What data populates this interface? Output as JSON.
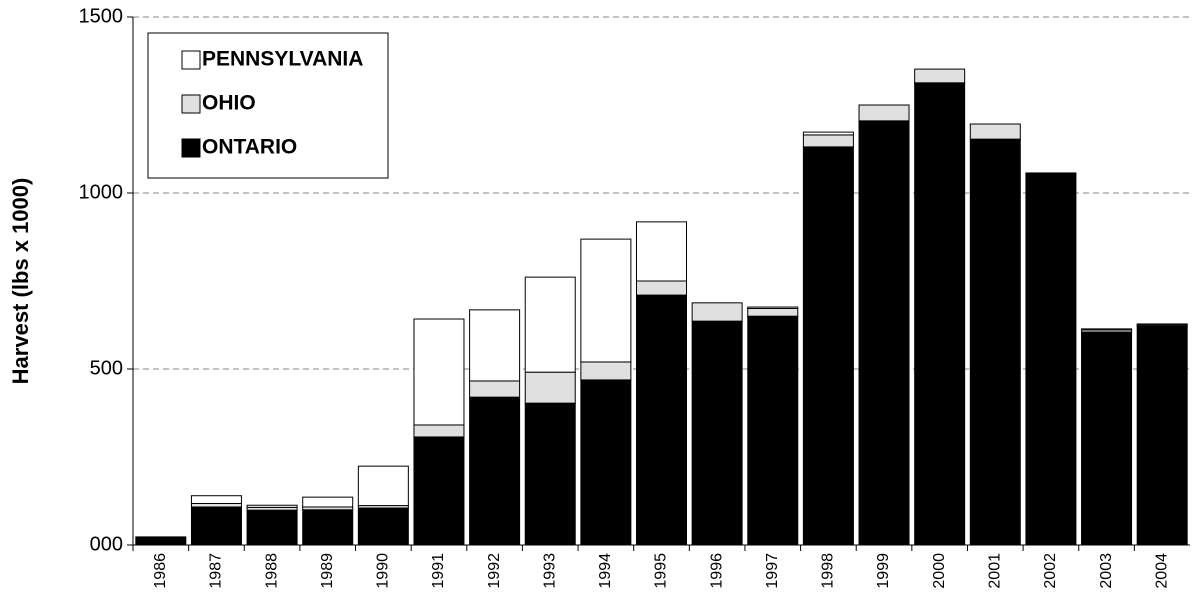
{
  "chart_data": {
    "type": "stacked_bar",
    "y_label": "Harvest (lbs x 1000)",
    "categories": [
      "1986",
      "1987",
      "1988",
      "1989",
      "1990",
      "1991",
      "1992",
      "1993",
      "1994",
      "1995",
      "1996",
      "1997",
      "1998",
      "1999",
      "2000",
      "2001",
      "2002",
      "2003",
      "2004"
    ],
    "series": [
      {
        "name": "ONTARIO",
        "color": "#000000",
        "values": [
          23,
          108,
          99,
          100,
          105,
          307,
          420,
          403,
          469,
          710,
          636,
          650,
          1131,
          1205,
          1313,
          1153,
          1057,
          605,
          622
        ]
      },
      {
        "name": "OHIO",
        "color": "#e0e0e0",
        "values": [
          0,
          10,
          8,
          8,
          7,
          34,
          46,
          88,
          51,
          40,
          52,
          22,
          34,
          45,
          39,
          43,
          0,
          6,
          3
        ]
      },
      {
        "name": "PENNSYLVANIA",
        "color": "#ffffff",
        "values": [
          0,
          22,
          6,
          28,
          112,
          301,
          202,
          270,
          349,
          168,
          0,
          4,
          8,
          0,
          0,
          0,
          0,
          3,
          3
        ]
      }
    ],
    "ylim": [
      0,
      1500
    ],
    "yticks": [
      {
        "value": 0,
        "label": "000"
      },
      500,
      1000,
      1500
    ],
    "grid": true,
    "legend": "upper left"
  }
}
